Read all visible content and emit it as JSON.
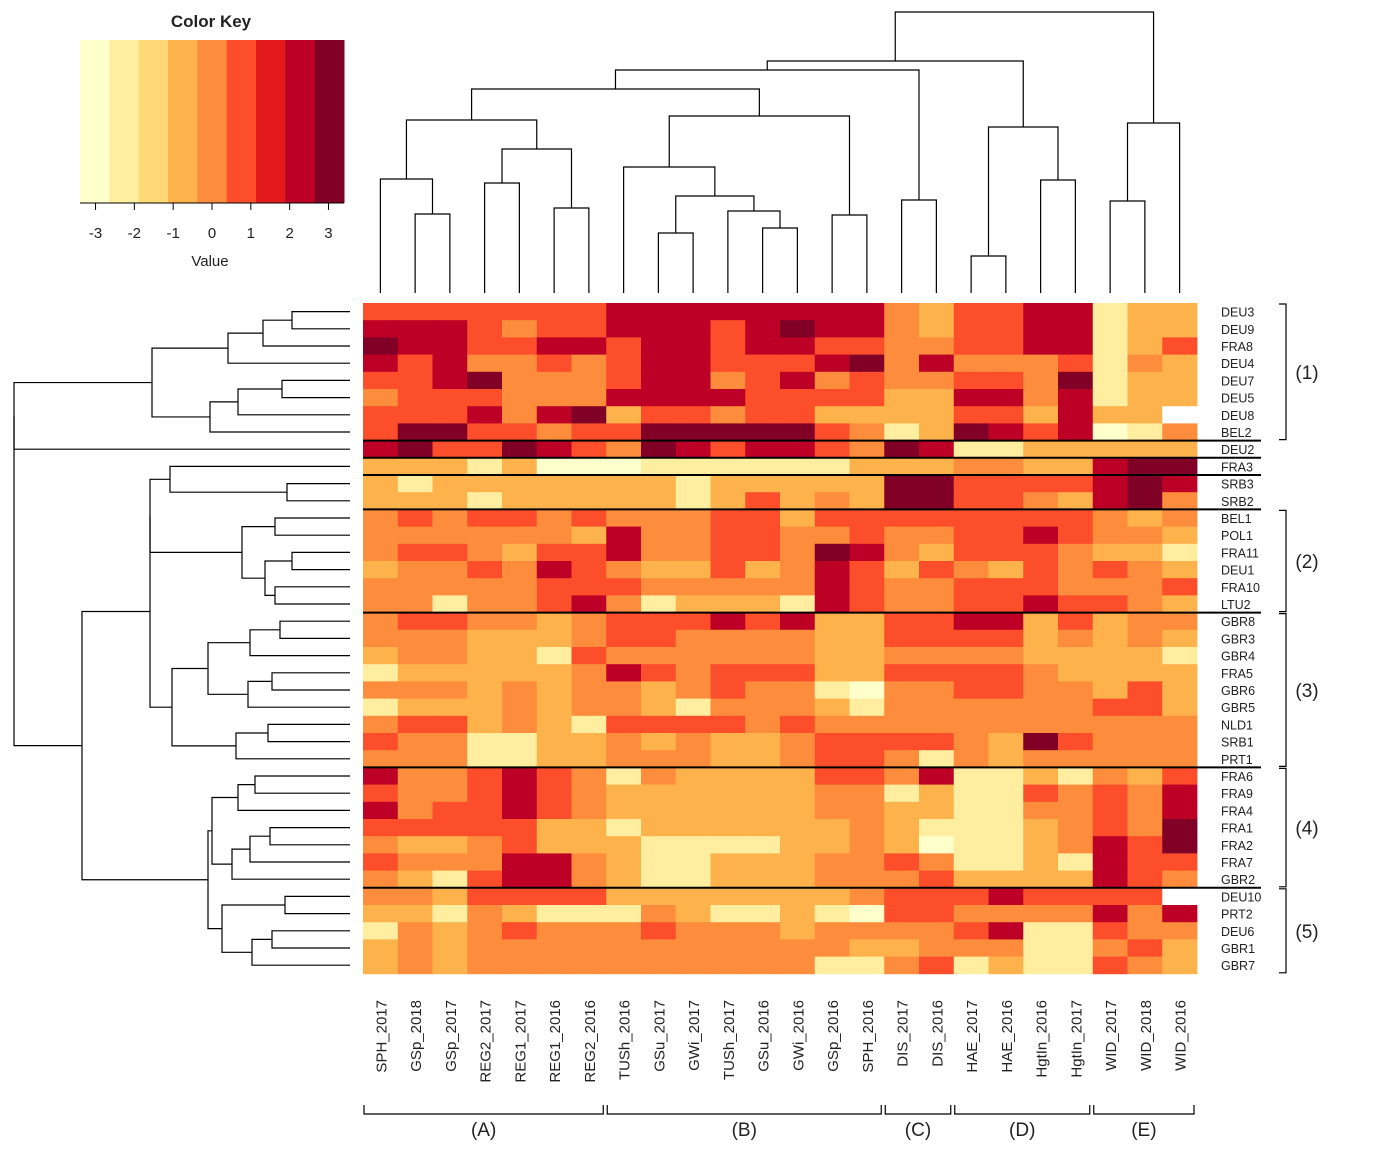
{
  "chart_data": {
    "type": "heatmap",
    "title": "",
    "columns": [
      "SPH_2017",
      "GSp_2018",
      "GSp_2017",
      "REG2_2017",
      "REG1_2017",
      "REG1_2016",
      "REG2_2016",
      "TUSh_2016",
      "GSu_2017",
      "GWi_2017",
      "TUSh_2017",
      "GSu_2016",
      "GWi_2016",
      "GSp_2016",
      "SPH_2016",
      "DIS_2017",
      "DIS_2016",
      "HAE_2017",
      "HAE_2016",
      "HgtIn_2016",
      "HgtIn_2017",
      "WID_2017",
      "WID_2018",
      "WID_2016"
    ],
    "rows": [
      "DEU3",
      "DEU9",
      "FRA8",
      "DEU4",
      "DEU7",
      "DEU5",
      "DEU8",
      "BEL2",
      "DEU2",
      "FRA3",
      "SRB3",
      "SRB2",
      "BEL1",
      "POL1",
      "FRA11",
      "DEU1",
      "FRA10",
      "LTU2",
      "GBR8",
      "GBR3",
      "GBR4",
      "FRA5",
      "GBR6",
      "GBR5",
      "NLD1",
      "SRB1",
      "PRT1",
      "FRA6",
      "FRA9",
      "FRA4",
      "FRA1",
      "FRA2",
      "FRA7",
      "GBR2",
      "DEU10",
      "PRT2",
      "DEU6",
      "GBR1",
      "GBR7"
    ],
    "values": [
      [
        1,
        1,
        1,
        1,
        1,
        1,
        1,
        2,
        2,
        2,
        2,
        2,
        2,
        2,
        2,
        0,
        -1,
        1,
        1,
        2,
        2,
        -2,
        -1,
        -1
      ],
      [
        2,
        2,
        2,
        1,
        0,
        1,
        1,
        2,
        2,
        2,
        1,
        2,
        3,
        2,
        2,
        0,
        -1,
        1,
        1,
        2,
        2,
        -2,
        -1,
        -1
      ],
      [
        3,
        2,
        2,
        1,
        1,
        2,
        2,
        1,
        2,
        2,
        1,
        2,
        2,
        1,
        1,
        0,
        0,
        1,
        1,
        2,
        2,
        -2,
        -1,
        1
      ],
      [
        2,
        1,
        2,
        0,
        0,
        1,
        0,
        1,
        2,
        2,
        1,
        1,
        1,
        2,
        3,
        0,
        2,
        0,
        0,
        0,
        1,
        -2,
        0,
        -1
      ],
      [
        1,
        1,
        2,
        3,
        0,
        0,
        0,
        1,
        2,
        2,
        0,
        1,
        2,
        0,
        1,
        0,
        0,
        1,
        1,
        0,
        3,
        -2,
        -1,
        -1
      ],
      [
        0,
        1,
        1,
        1,
        0,
        0,
        0,
        2,
        2,
        2,
        2,
        1,
        1,
        1,
        1,
        -1,
        -1,
        2,
        2,
        0,
        2,
        -2,
        -1,
        -1
      ],
      [
        1,
        1,
        1,
        2,
        0,
        2,
        3,
        -1,
        1,
        1,
        0,
        1,
        1,
        -1,
        -1,
        -1,
        -1,
        1,
        1,
        -1,
        2,
        -1,
        -1,
        null
      ],
      [
        1,
        3,
        3,
        1,
        1,
        0,
        1,
        1,
        3,
        3,
        4,
        3,
        3,
        1,
        0,
        -2,
        -1,
        3,
        2,
        1,
        2,
        -3,
        -2,
        0
      ],
      [
        2,
        3,
        1,
        1,
        3,
        2,
        1,
        0,
        3,
        2,
        1,
        2,
        2,
        1,
        0,
        3,
        2,
        -2,
        -2,
        -1,
        -1,
        -1,
        -1,
        -1
      ],
      [
        -1,
        -1,
        -1,
        -2,
        -1,
        -3,
        -3,
        -3,
        -2,
        -2,
        -2,
        -2,
        -2,
        -2,
        -1,
        -1,
        -1,
        0,
        0,
        -1,
        -1,
        2,
        3,
        4
      ],
      [
        -1,
        -2,
        -1,
        -1,
        -1,
        -1,
        -1,
        -1,
        -1,
        -2,
        -1,
        -1,
        -1,
        -1,
        -1,
        4,
        3,
        1,
        1,
        1,
        1,
        2,
        4,
        2
      ],
      [
        -1,
        -1,
        -1,
        -2,
        -1,
        -1,
        -1,
        -1,
        -1,
        -2,
        -1,
        1,
        -1,
        0,
        -1,
        3,
        3,
        1,
        1,
        0,
        -1,
        2,
        3,
        0
      ],
      [
        0,
        1,
        0,
        1,
        1,
        0,
        1,
        0,
        0,
        0,
        1,
        1,
        -1,
        1,
        1,
        1,
        1,
        1,
        1,
        1,
        1,
        0,
        -1,
        0
      ],
      [
        0,
        0,
        0,
        0,
        0,
        0,
        -1,
        2,
        0,
        0,
        1,
        1,
        0,
        0,
        1,
        0,
        0,
        1,
        1,
        2,
        1,
        0,
        0,
        -1
      ],
      [
        0,
        1,
        1,
        0,
        -1,
        1,
        1,
        2,
        0,
        0,
        1,
        1,
        0,
        3,
        2,
        0,
        -1,
        1,
        1,
        1,
        0,
        -1,
        -1,
        -2
      ],
      [
        -1,
        0,
        0,
        1,
        0,
        2,
        1,
        0,
        -1,
        -1,
        1,
        -1,
        0,
        2,
        1,
        -1,
        1,
        0,
        -1,
        1,
        0,
        1,
        0,
        -1
      ],
      [
        0,
        0,
        0,
        0,
        0,
        1,
        1,
        1,
        0,
        0,
        0,
        0,
        0,
        2,
        1,
        0,
        0,
        1,
        1,
        1,
        0,
        0,
        0,
        1
      ],
      [
        0,
        0,
        -2,
        0,
        0,
        1,
        2,
        0,
        -2,
        -1,
        -1,
        -1,
        -2,
        2,
        1,
        0,
        0,
        1,
        1,
        2,
        1,
        1,
        0,
        -1
      ],
      [
        0,
        1,
        1,
        0,
        0,
        -1,
        0,
        1,
        1,
        1,
        2,
        1,
        2,
        -1,
        -1,
        1,
        1,
        2,
        2,
        -1,
        1,
        -1,
        0,
        0
      ],
      [
        0,
        0,
        0,
        -1,
        -1,
        -1,
        0,
        1,
        1,
        0,
        0,
        0,
        0,
        -1,
        -1,
        1,
        1,
        1,
        1,
        -1,
        0,
        -1,
        0,
        -1
      ],
      [
        -1,
        0,
        0,
        -1,
        -1,
        -2,
        1,
        0,
        0,
        0,
        0,
        0,
        0,
        -1,
        -1,
        0,
        0,
        0,
        0,
        -1,
        -1,
        -1,
        -1,
        -2
      ],
      [
        -2,
        -1,
        -1,
        -1,
        -1,
        -1,
        0,
        2,
        1,
        0,
        1,
        1,
        1,
        -1,
        -1,
        1,
        1,
        1,
        1,
        0,
        -1,
        -1,
        -1,
        -1
      ],
      [
        0,
        0,
        0,
        -1,
        0,
        -1,
        0,
        0,
        -1,
        0,
        1,
        0,
        0,
        -2,
        -3,
        0,
        0,
        1,
        1,
        0,
        0,
        -1,
        1,
        -1
      ],
      [
        -2,
        -1,
        -1,
        -1,
        0,
        -1,
        0,
        0,
        -1,
        -2,
        0,
        0,
        0,
        -1,
        -2,
        0,
        0,
        0,
        0,
        0,
        0,
        1,
        1,
        -1
      ],
      [
        0,
        1,
        1,
        -1,
        0,
        -1,
        -2,
        1,
        1,
        1,
        1,
        0,
        1,
        0,
        0,
        0,
        0,
        0,
        0,
        0,
        0,
        0,
        0,
        0
      ],
      [
        1,
        0,
        0,
        -2,
        -2,
        -1,
        -1,
        0,
        -1,
        0,
        -1,
        -1,
        0,
        1,
        1,
        1,
        1,
        0,
        -1,
        3,
        1,
        0,
        0,
        0
      ],
      [
        0,
        0,
        0,
        -2,
        -2,
        -1,
        -1,
        0,
        0,
        0,
        -1,
        -1,
        0,
        1,
        1,
        0,
        -2,
        0,
        -1,
        0,
        0,
        0,
        0,
        0
      ],
      [
        2,
        0,
        0,
        1,
        2,
        1,
        0,
        -2,
        0,
        -1,
        -1,
        -1,
        -1,
        1,
        1,
        0,
        2,
        -2,
        -2,
        -1,
        -2,
        0,
        -1,
        1
      ],
      [
        1,
        0,
        0,
        1,
        2,
        1,
        0,
        -1,
        -1,
        -1,
        -1,
        -1,
        -1,
        0,
        0,
        -2,
        -1,
        -2,
        -2,
        1,
        0,
        1,
        0,
        2
      ],
      [
        2,
        0,
        1,
        1,
        2,
        1,
        0,
        -1,
        -1,
        -1,
        -1,
        -1,
        -1,
        0,
        0,
        -1,
        -1,
        -2,
        -2,
        0,
        0,
        1,
        0,
        2
      ],
      [
        1,
        1,
        1,
        1,
        1,
        -1,
        -1,
        -2,
        -1,
        -1,
        -1,
        -1,
        -1,
        -1,
        0,
        -1,
        -2,
        -2,
        -2,
        -1,
        0,
        1,
        0,
        3
      ],
      [
        0,
        -1,
        -1,
        0,
        1,
        -1,
        -1,
        -1,
        -2,
        -2,
        -2,
        -2,
        -1,
        -1,
        0,
        -1,
        -3,
        -2,
        -2,
        -1,
        0,
        2,
        1,
        3
      ],
      [
        1,
        0,
        0,
        0,
        2,
        2,
        0,
        -1,
        -2,
        -2,
        -1,
        -1,
        -1,
        0,
        0,
        1,
        0,
        -2,
        -2,
        -1,
        -2,
        2,
        1,
        1
      ],
      [
        0,
        -1,
        -2,
        1,
        2,
        2,
        0,
        -1,
        -2,
        -2,
        -1,
        -1,
        -1,
        0,
        0,
        0,
        1,
        -1,
        -1,
        -1,
        -1,
        2,
        1,
        0
      ],
      [
        0,
        0,
        -1,
        1,
        1,
        1,
        1,
        -1,
        -1,
        -1,
        -1,
        -1,
        -1,
        -1,
        0,
        1,
        1,
        1,
        2,
        1,
        1,
        1,
        1,
        null
      ],
      [
        -1,
        -1,
        -2,
        0,
        -1,
        -2,
        -2,
        -2,
        0,
        -1,
        -2,
        -2,
        -1,
        -2,
        -3,
        1,
        1,
        0,
        0,
        0,
        0,
        2,
        0,
        2
      ],
      [
        -2,
        0,
        -1,
        0,
        1,
        0,
        0,
        0,
        1,
        0,
        0,
        0,
        -1,
        0,
        0,
        0,
        0,
        1,
        2,
        -2,
        -2,
        1,
        0,
        0
      ],
      [
        -1,
        0,
        -1,
        0,
        0,
        0,
        0,
        0,
        0,
        0,
        0,
        0,
        0,
        0,
        -1,
        -1,
        0,
        0,
        0,
        -2,
        -2,
        0,
        1,
        -1
      ],
      [
        -1,
        0,
        -1,
        0,
        0,
        0,
        0,
        0,
        0,
        0,
        0,
        0,
        0,
        -2,
        -2,
        0,
        1,
        -2,
        -1,
        -2,
        -2,
        1,
        0,
        -1
      ]
    ],
    "color_key": {
      "title": "Color Key",
      "xlabel": "Value",
      "ticks": [
        "-3",
        "-2",
        "-1",
        "0",
        "1",
        "2",
        "3"
      ],
      "tick_values": [
        -3,
        -2,
        -1,
        0,
        1,
        2,
        3
      ],
      "range": [
        -3.4,
        3.4
      ],
      "colors": [
        "#FFFFCC",
        "#FFEDA0",
        "#FED976",
        "#FEB24C",
        "#FD8D3C",
        "#FC4E2A",
        "#E31A1C",
        "#BD0026",
        "#800026"
      ]
    },
    "column_groups": [
      {
        "label": "(A)",
        "from": 0,
        "to": 6
      },
      {
        "label": "(B)",
        "from": 7,
        "to": 14
      },
      {
        "label": "(C)",
        "from": 15,
        "to": 16
      },
      {
        "label": "(D)",
        "from": 17,
        "to": 20
      },
      {
        "label": "(E)",
        "from": 21,
        "to": 23
      }
    ],
    "row_groups": [
      {
        "label": "(1)",
        "from": 0,
        "to": 7
      },
      {
        "label": "(2)",
        "from": 12,
        "to": 17
      },
      {
        "label": "(3)",
        "from": 18,
        "to": 26
      },
      {
        "label": "(4)",
        "from": 27,
        "to": 33
      },
      {
        "label": "(5)",
        "from": 34,
        "to": 38
      }
    ],
    "row_separators_after": [
      7,
      8,
      9,
      11,
      17,
      26,
      33
    ]
  }
}
